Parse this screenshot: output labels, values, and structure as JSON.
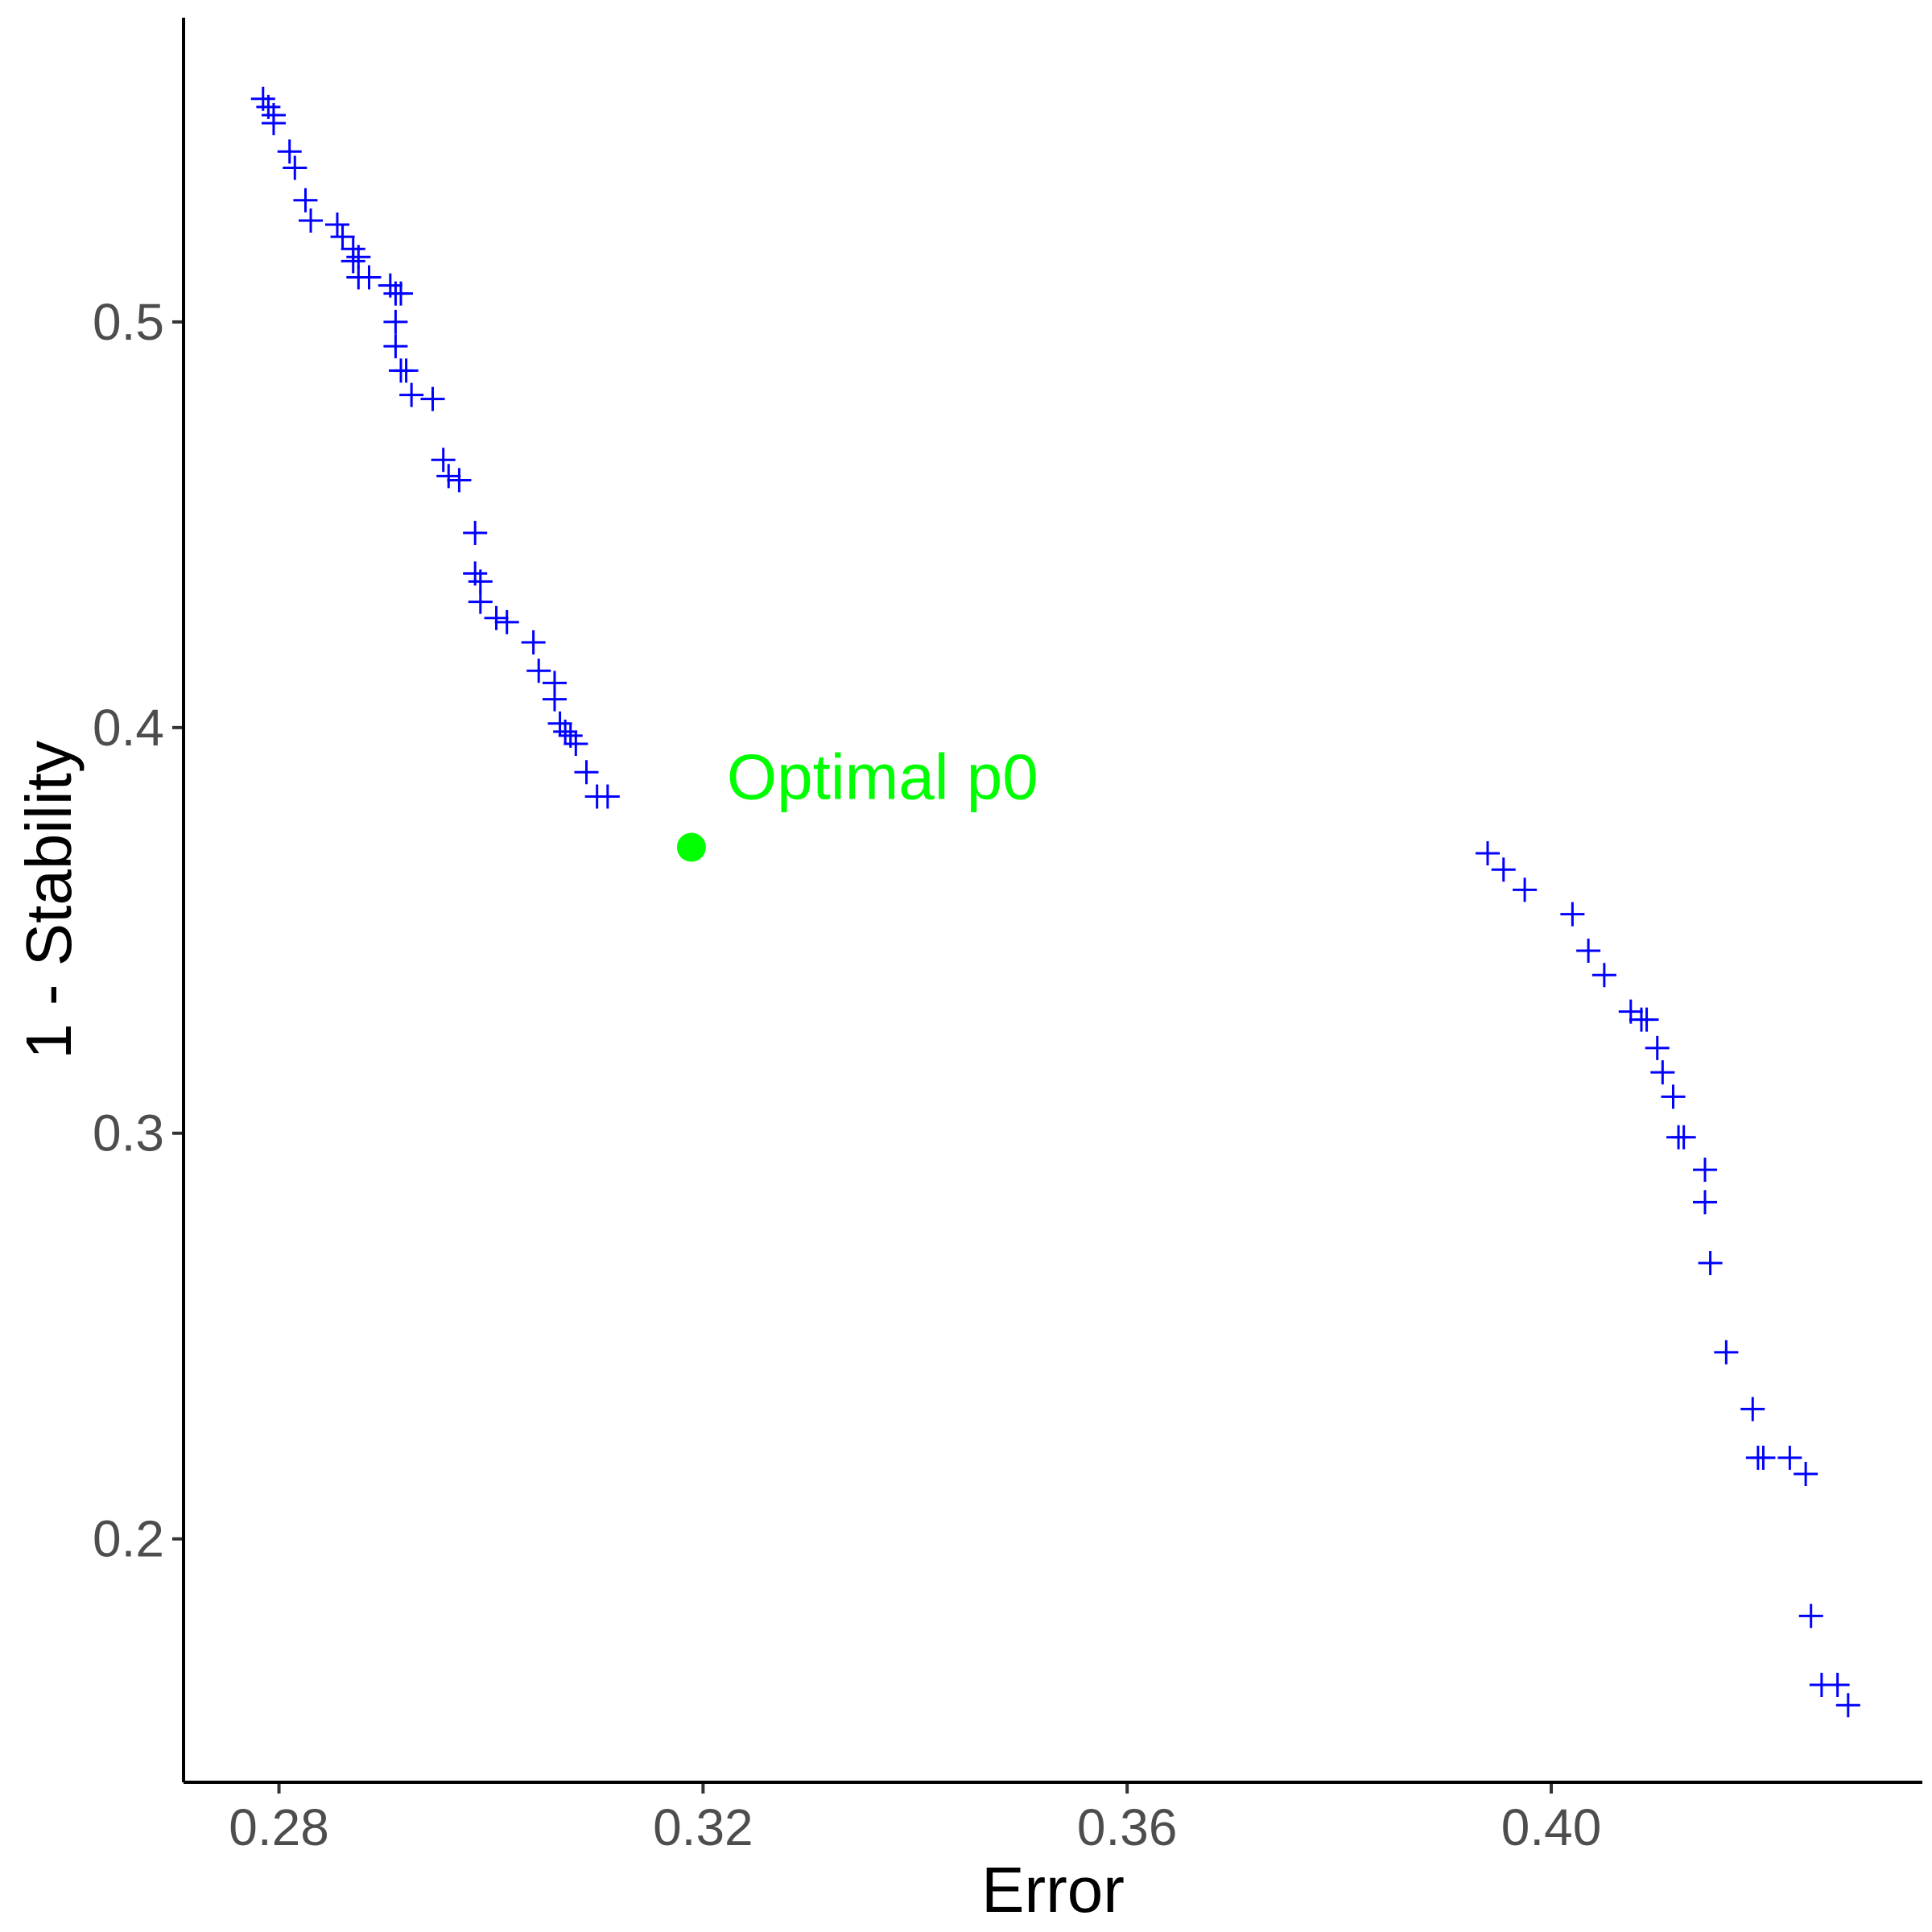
{
  "chart_data": {
    "type": "scatter",
    "title": "",
    "xlabel": "Error",
    "ylabel": "1 - Stability",
    "xlim": [
      0.271,
      0.435
    ],
    "ylim": [
      0.14,
      0.575
    ],
    "xticks": [
      0.28,
      0.32,
      0.36,
      0.4
    ],
    "xtick_labels": [
      "0.28",
      "0.32",
      "0.36",
      "0.40"
    ],
    "yticks": [
      0.2,
      0.3,
      0.4,
      0.5
    ],
    "ytick_labels": [
      "0.2",
      "0.3",
      "0.4",
      "0.5"
    ],
    "grid": false,
    "legend": "none",
    "series": [
      {
        "marker": "plus",
        "color": "#0000FF",
        "points": [
          [
            0.2785,
            0.555
          ],
          [
            0.279,
            0.553
          ],
          [
            0.2795,
            0.551
          ],
          [
            0.2795,
            0.549
          ],
          [
            0.281,
            0.542
          ],
          [
            0.2815,
            0.538
          ],
          [
            0.2825,
            0.53
          ],
          [
            0.283,
            0.525
          ],
          [
            0.2855,
            0.524
          ],
          [
            0.286,
            0.521
          ],
          [
            0.287,
            0.518
          ],
          [
            0.287,
            0.515
          ],
          [
            0.2875,
            0.516
          ],
          [
            0.2875,
            0.511
          ],
          [
            0.2885,
            0.511
          ],
          [
            0.2905,
            0.509
          ],
          [
            0.291,
            0.507
          ],
          [
            0.2915,
            0.507
          ],
          [
            0.291,
            0.5
          ],
          [
            0.291,
            0.494
          ],
          [
            0.2915,
            0.488
          ],
          [
            0.292,
            0.488
          ],
          [
            0.2925,
            0.482
          ],
          [
            0.2945,
            0.481
          ],
          [
            0.2955,
            0.466
          ],
          [
            0.296,
            0.462
          ],
          [
            0.297,
            0.461
          ],
          [
            0.2985,
            0.448
          ],
          [
            0.2985,
            0.438
          ],
          [
            0.299,
            0.436
          ],
          [
            0.299,
            0.431
          ],
          [
            0.3005,
            0.427
          ],
          [
            0.3015,
            0.426
          ],
          [
            0.304,
            0.421
          ],
          [
            0.3045,
            0.414
          ],
          [
            0.306,
            0.411
          ],
          [
            0.306,
            0.407
          ],
          [
            0.3065,
            0.401
          ],
          [
            0.307,
            0.399
          ],
          [
            0.3075,
            0.398
          ],
          [
            0.308,
            0.396
          ],
          [
            0.309,
            0.389
          ],
          [
            0.31,
            0.383
          ],
          [
            0.311,
            0.383
          ],
          [
            0.394,
            0.369
          ],
          [
            0.3955,
            0.365
          ],
          [
            0.3975,
            0.36
          ],
          [
            0.402,
            0.354
          ],
          [
            0.4035,
            0.345
          ],
          [
            0.405,
            0.339
          ],
          [
            0.4075,
            0.33
          ],
          [
            0.4085,
            0.328
          ],
          [
            0.409,
            0.328
          ],
          [
            0.41,
            0.321
          ],
          [
            0.4105,
            0.315
          ],
          [
            0.4115,
            0.309
          ],
          [
            0.412,
            0.299
          ],
          [
            0.4125,
            0.299
          ],
          [
            0.4145,
            0.291
          ],
          [
            0.4145,
            0.283
          ],
          [
            0.415,
            0.268
          ],
          [
            0.4165,
            0.246
          ],
          [
            0.419,
            0.232
          ],
          [
            0.4195,
            0.22
          ],
          [
            0.42,
            0.22
          ],
          [
            0.4225,
            0.22
          ],
          [
            0.424,
            0.216
          ],
          [
            0.4245,
            0.181
          ],
          [
            0.4255,
            0.164
          ],
          [
            0.427,
            0.164
          ],
          [
            0.428,
            0.159
          ]
        ]
      }
    ],
    "highlight": {
      "label": "Optimal p0",
      "x": 0.3189,
      "y": 0.3705,
      "color": "#00FF00"
    }
  }
}
